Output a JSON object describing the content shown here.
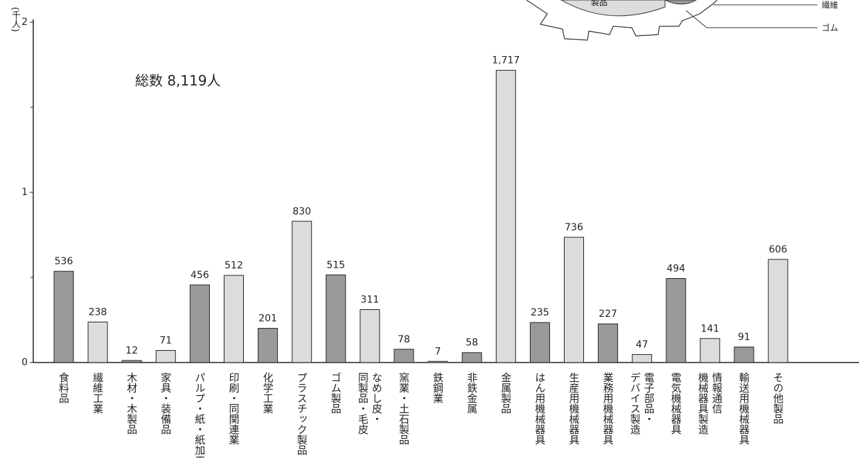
{
  "chart_data": {
    "type": "bar",
    "y_label": "(千人)",
    "annotation": "総数 8,119人",
    "inset_labels": [
      "製品",
      "繊維",
      "ゴム"
    ],
    "categories": [
      "食料品",
      "繊維工業",
      "木材・木製品",
      "家具・装備品",
      "パルプ・紙・紙加工",
      "印刷・同関連業",
      "化学工業",
      "プラスチック製品",
      "ゴム製品",
      "なめし皮・\n同製品・毛皮",
      "窯業・土石製品",
      "鉄鋼業",
      "非鉄金属",
      "金属製品",
      "はん用機械器具",
      "生産用機械器具",
      "業務用機械器具",
      "電子部品・\nデバイス製造",
      "電気機械器具",
      "情報通信\n機械器具製造",
      "輸送用機械器具",
      "その他製品"
    ],
    "values": [
      0.536,
      0.238,
      0.012,
      0.071,
      0.456,
      0.512,
      0.201,
      0.83,
      0.515,
      0.311,
      0.078,
      0.007,
      0.058,
      1.717,
      0.235,
      0.736,
      0.227,
      0.047,
      0.494,
      0.141,
      0.091,
      0.606
    ],
    "value_labels": [
      "536",
      "238",
      "12",
      "71",
      "456",
      "512",
      "201",
      "830",
      "515",
      "311",
      "78",
      "7",
      "58",
      "1,717",
      "235",
      "736",
      "227",
      "47",
      "494",
      "141",
      "91",
      "606"
    ],
    "colors": [
      "#9a9a9a",
      "#dcdcdc",
      "#9a9a9a",
      "#dcdcdc",
      "#9a9a9a",
      "#dcdcdc",
      "#9a9a9a",
      "#dcdcdc",
      "#9a9a9a",
      "#dcdcdc",
      "#9a9a9a",
      "#dcdcdc",
      "#9a9a9a",
      "#dcdcdc",
      "#9a9a9a",
      "#dcdcdc",
      "#9a9a9a",
      "#dcdcdc",
      "#9a9a9a",
      "#dcdcdc",
      "#9a9a9a",
      "#dcdcdc"
    ],
    "ylim": [
      0,
      2
    ],
    "yticks": [
      0,
      1,
      2
    ],
    "yminor": [
      0.5,
      1.5
    ]
  }
}
